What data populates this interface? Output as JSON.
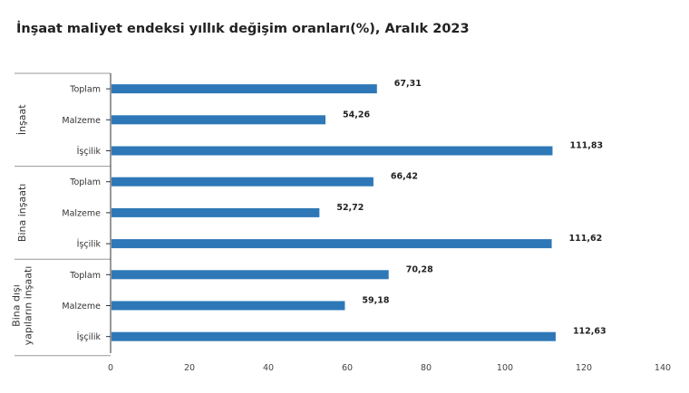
{
  "title": "İnşaat maliyet endeksi yıllık değişim oranları(%), Aralık 2023",
  "colors": {
    "bar": "#2e78b7",
    "axis": "#333333",
    "group_line": "#999999"
  },
  "chart_data": {
    "type": "bar",
    "orientation": "horizontal",
    "title": "İnşaat maliyet endeksi yıllık değişim oranları(%), Aralık 2023",
    "xlim": [
      0,
      140
    ],
    "xticks": [
      0,
      20,
      40,
      60,
      80,
      100,
      120,
      140
    ],
    "grid": false,
    "groups": [
      {
        "label": [
          "İnşaat"
        ],
        "items": [
          {
            "category": "Toplam",
            "value": 67.31,
            "label": "67,31"
          },
          {
            "category": "Malzeme",
            "value": 54.26,
            "label": "54,26"
          },
          {
            "category": "İşçilik",
            "value": 111.83,
            "label": "111,83"
          }
        ]
      },
      {
        "label": [
          "Bina inşaatı"
        ],
        "items": [
          {
            "category": "Toplam",
            "value": 66.42,
            "label": "66,42"
          },
          {
            "category": "Malzeme",
            "value": 52.72,
            "label": "52,72"
          },
          {
            "category": "İşçilik",
            "value": 111.62,
            "label": "111,62"
          }
        ]
      },
      {
        "label": [
          "Bina dışı",
          "yapıların inşaatı"
        ],
        "items": [
          {
            "category": "Toplam",
            "value": 70.28,
            "label": "70,28"
          },
          {
            "category": "Malzeme",
            "value": 59.18,
            "label": "59,18"
          },
          {
            "category": "İşçilik",
            "value": 112.63,
            "label": "112,63"
          }
        ]
      }
    ]
  }
}
